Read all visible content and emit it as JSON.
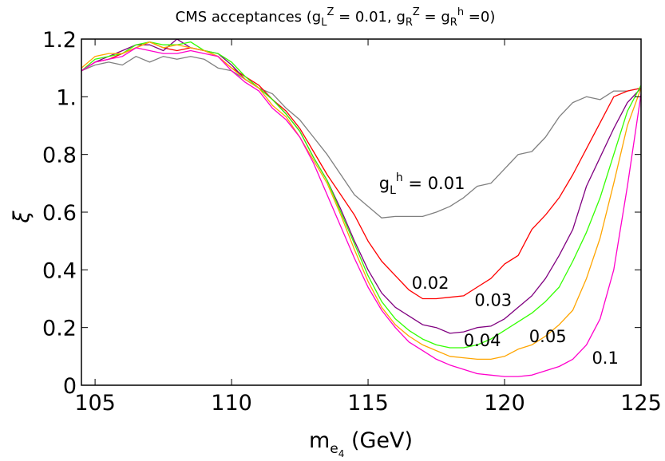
{
  "chart_data": {
    "type": "line",
    "title": {
      "prefix": "CMS acceptances (g",
      "sub1": "L",
      "sup1": "Z",
      "mid1": " = 0.01, g",
      "sub2": "R",
      "sup2": "Z",
      "mid2": " = g",
      "sub3": "R",
      "sup3": "h",
      "suffix": " =0)"
    },
    "xlabel": {
      "main": "m",
      "sub": "e",
      "subsub": "4",
      "unit": " (GeV)"
    },
    "ylabel": "ξ",
    "xlim": [
      104.5,
      125
    ],
    "ylim": [
      0,
      1.2
    ],
    "xticks": [
      105,
      110,
      115,
      120,
      125
    ],
    "yticks": [
      {
        "value": 0,
        "label": "0"
      },
      {
        "value": 0.2,
        "label": "0.2"
      },
      {
        "value": 0.4,
        "label": "0.4"
      },
      {
        "value": 0.6,
        "label": "0.6"
      },
      {
        "value": 0.8,
        "label": "0.8"
      },
      {
        "value": 1.0,
        "label": "1."
      },
      {
        "value": 1.2,
        "label": "1.2"
      }
    ],
    "series": [
      {
        "name": "g_L^h = 0.01",
        "color": "#808080",
        "x": [
          104.5,
          105,
          105.5,
          106,
          106.5,
          107,
          107.5,
          108,
          108.5,
          109,
          109.5,
          110,
          110.5,
          111,
          111.5,
          112,
          112.5,
          113,
          113.5,
          114,
          114.5,
          115,
          115.5,
          116,
          116.5,
          117,
          117.5,
          118,
          118.5,
          119,
          119.5,
          120,
          120.5,
          121,
          121.5,
          122,
          122.5,
          123,
          123.5,
          124,
          124.5,
          125
        ],
        "y": [
          1.09,
          1.11,
          1.12,
          1.11,
          1.14,
          1.12,
          1.14,
          1.13,
          1.14,
          1.13,
          1.1,
          1.09,
          1.06,
          1.03,
          1.01,
          0.96,
          0.92,
          0.86,
          0.8,
          0.73,
          0.66,
          0.62,
          0.58,
          0.585,
          0.585,
          0.585,
          0.6,
          0.62,
          0.65,
          0.69,
          0.7,
          0.75,
          0.8,
          0.81,
          0.86,
          0.93,
          0.98,
          1.0,
          0.99,
          1.02,
          1.02,
          1.03
        ]
      },
      {
        "name": "0.02",
        "color": "#ff0000",
        "x": [
          104.5,
          105,
          105.5,
          106,
          106.5,
          107,
          107.5,
          108,
          108.5,
          109,
          109.5,
          110,
          110.5,
          111,
          111.5,
          112,
          112.5,
          113,
          113.5,
          114,
          114.5,
          115,
          115.5,
          116,
          116.5,
          117,
          117.5,
          118,
          118.5,
          119,
          119.5,
          120,
          120.5,
          121,
          121.5,
          122,
          122.5,
          123,
          123.5,
          124,
          124.5,
          125
        ],
        "y": [
          1.09,
          1.12,
          1.13,
          1.15,
          1.17,
          1.19,
          1.17,
          1.16,
          1.17,
          1.16,
          1.14,
          1.1,
          1.07,
          1.04,
          0.99,
          0.95,
          0.89,
          0.81,
          0.73,
          0.66,
          0.59,
          0.5,
          0.43,
          0.38,
          0.33,
          0.3,
          0.3,
          0.305,
          0.31,
          0.34,
          0.37,
          0.42,
          0.45,
          0.54,
          0.59,
          0.65,
          0.73,
          0.82,
          0.91,
          1.0,
          1.02,
          1.03
        ]
      },
      {
        "name": "0.03",
        "color": "#800080",
        "x": [
          104.5,
          105,
          105.5,
          106,
          106.5,
          107,
          107.5,
          108,
          108.5,
          109,
          109.5,
          110,
          110.5,
          111,
          111.5,
          112,
          112.5,
          113,
          113.5,
          114,
          114.5,
          115,
          115.5,
          116,
          116.5,
          117,
          117.5,
          118,
          118.5,
          119,
          119.5,
          120,
          120.5,
          121,
          121.5,
          122,
          122.5,
          123,
          123.5,
          124,
          124.5,
          125
        ],
        "y": [
          1.09,
          1.12,
          1.14,
          1.16,
          1.18,
          1.18,
          1.16,
          1.2,
          1.17,
          1.16,
          1.15,
          1.11,
          1.06,
          1.03,
          0.99,
          0.94,
          0.88,
          0.79,
          0.71,
          0.61,
          0.5,
          0.4,
          0.32,
          0.27,
          0.24,
          0.21,
          0.2,
          0.18,
          0.185,
          0.2,
          0.205,
          0.23,
          0.27,
          0.31,
          0.37,
          0.45,
          0.54,
          0.69,
          0.79,
          0.89,
          0.98,
          1.03
        ]
      },
      {
        "name": "0.04",
        "color": "#33ff00",
        "x": [
          104.5,
          105,
          105.5,
          106,
          106.5,
          107,
          107.5,
          108,
          108.5,
          109,
          109.5,
          110,
          110.5,
          111,
          111.5,
          112,
          112.5,
          113,
          113.5,
          114,
          114.5,
          115,
          115.5,
          116,
          116.5,
          117,
          117.5,
          118,
          118.5,
          119,
          119.5,
          120,
          120.5,
          121,
          121.5,
          122,
          122.5,
          123,
          123.5,
          124,
          124.5,
          125
        ],
        "y": [
          1.09,
          1.13,
          1.14,
          1.15,
          1.18,
          1.19,
          1.18,
          1.18,
          1.19,
          1.16,
          1.15,
          1.12,
          1.07,
          1.03,
          0.99,
          0.94,
          0.88,
          0.79,
          0.71,
          0.6,
          0.49,
          0.38,
          0.29,
          0.23,
          0.19,
          0.16,
          0.14,
          0.13,
          0.13,
          0.14,
          0.16,
          0.19,
          0.22,
          0.25,
          0.29,
          0.34,
          0.43,
          0.53,
          0.65,
          0.8,
          0.95,
          1.04
        ]
      },
      {
        "name": "0.05",
        "color": "#ffa500",
        "x": [
          104.5,
          105,
          105.5,
          106,
          106.5,
          107,
          107.5,
          108,
          108.5,
          109,
          109.5,
          110,
          110.5,
          111,
          111.5,
          112,
          112.5,
          113,
          113.5,
          114,
          114.5,
          115,
          115.5,
          116,
          116.5,
          117,
          117.5,
          118,
          118.5,
          119,
          119.5,
          120,
          120.5,
          121,
          121.5,
          122,
          122.5,
          123,
          123.5,
          124,
          124.5,
          125
        ],
        "y": [
          1.1,
          1.14,
          1.15,
          1.15,
          1.17,
          1.19,
          1.17,
          1.18,
          1.17,
          1.16,
          1.14,
          1.1,
          1.06,
          1.03,
          0.97,
          0.93,
          0.86,
          0.78,
          0.7,
          0.59,
          0.47,
          0.36,
          0.27,
          0.21,
          0.17,
          0.14,
          0.12,
          0.1,
          0.095,
          0.09,
          0.09,
          0.1,
          0.125,
          0.14,
          0.17,
          0.21,
          0.26,
          0.37,
          0.51,
          0.7,
          0.9,
          1.03
        ]
      },
      {
        "name": "0.1",
        "color": "#ff00cc",
        "x": [
          104.5,
          105,
          105.5,
          106,
          106.5,
          107,
          107.5,
          108,
          108.5,
          109,
          109.5,
          110,
          110.5,
          111,
          111.5,
          112,
          112.5,
          113,
          113.5,
          114,
          114.5,
          115,
          115.5,
          116,
          116.5,
          117,
          117.5,
          118,
          118.5,
          119,
          119.5,
          120,
          120.5,
          121,
          121.5,
          122,
          122.5,
          123,
          123.5,
          124,
          124.5,
          125
        ],
        "y": [
          1.09,
          1.12,
          1.13,
          1.14,
          1.17,
          1.16,
          1.15,
          1.15,
          1.16,
          1.15,
          1.14,
          1.09,
          1.05,
          1.02,
          0.96,
          0.92,
          0.86,
          0.77,
          0.66,
          0.55,
          0.44,
          0.34,
          0.26,
          0.2,
          0.15,
          0.12,
          0.09,
          0.07,
          0.055,
          0.04,
          0.035,
          0.03,
          0.03,
          0.035,
          0.05,
          0.065,
          0.09,
          0.14,
          0.23,
          0.4,
          0.69,
          1.01
        ]
      }
    ],
    "annotations": [
      {
        "label": "g",
        "sub": "L",
        "sup": "h",
        "rest": " = 0.01",
        "x": 115.4,
        "y": 0.68
      },
      {
        "label": "0.02",
        "x": 116.6,
        "y": 0.335
      },
      {
        "label": "0.03",
        "x": 118.9,
        "y": 0.275
      },
      {
        "label": "0.04",
        "x": 118.5,
        "y": 0.135
      },
      {
        "label": "0.05",
        "x": 120.9,
        "y": 0.15
      },
      {
        "label": "0.1",
        "x": 123.2,
        "y": 0.075
      }
    ]
  }
}
